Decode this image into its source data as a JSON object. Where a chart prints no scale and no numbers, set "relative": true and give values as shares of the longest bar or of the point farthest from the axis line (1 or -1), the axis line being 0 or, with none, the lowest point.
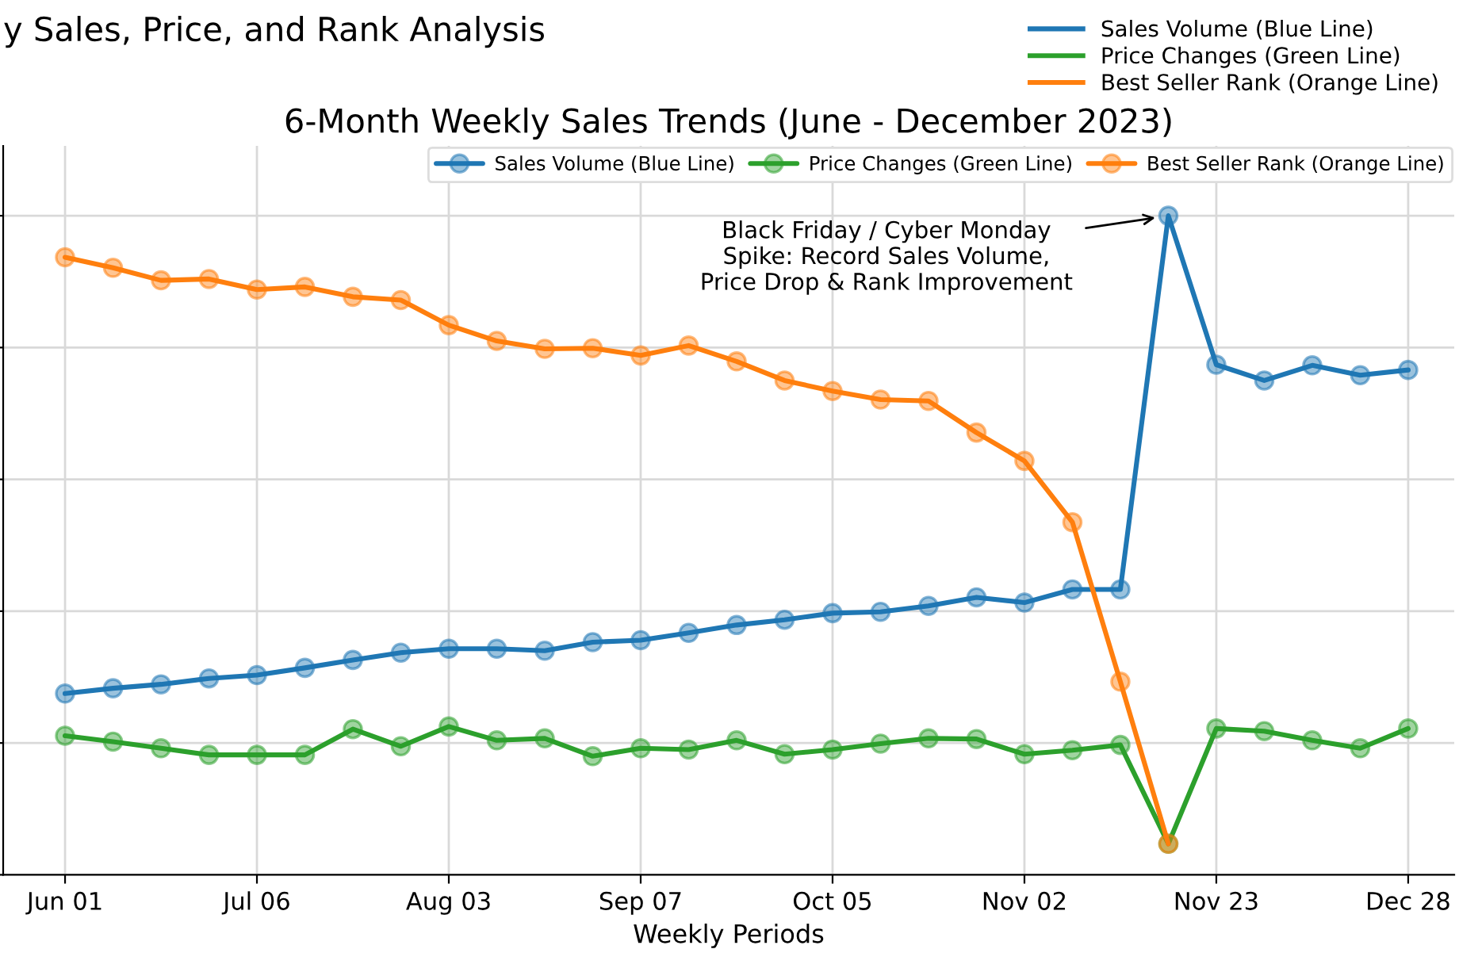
{
  "chart_data": {
    "type": "line",
    "title": "y Sales, Price, and Rank Analysis",
    "subtitle": "6-Month Weekly Sales Trends (June - December 2023)",
    "xlabel": "Weekly Periods",
    "categories": [
      "Jun 01",
      null,
      null,
      null,
      "Jul 06",
      null,
      null,
      null,
      "Aug 03",
      null,
      null,
      null,
      "Sep 07",
      null,
      null,
      null,
      "Oct 05",
      null,
      null,
      null,
      "Nov 02",
      null,
      null,
      null,
      "Nov 23",
      null,
      null,
      null,
      "Dec 28"
    ],
    "relative": true,
    "series": [
      {
        "name": "Sales Volume (Blue Line)",
        "color": "#1f77b4",
        "values": [
          0.275,
          0.283,
          0.289,
          0.298,
          0.303,
          0.314,
          0.326,
          0.337,
          0.343,
          0.343,
          0.34,
          0.353,
          0.356,
          0.367,
          0.379,
          0.387,
          0.397,
          0.399,
          0.408,
          0.421,
          0.413,
          0.433,
          0.433,
          1.0,
          0.774,
          0.75,
          0.773,
          0.758,
          0.766
        ]
      },
      {
        "name": "Price Changes (Green Line)",
        "color": "#2ca02c",
        "values": [
          0.211,
          0.202,
          0.192,
          0.182,
          0.182,
          0.182,
          0.221,
          0.195,
          0.225,
          0.204,
          0.207,
          0.18,
          0.192,
          0.19,
          0.204,
          0.183,
          0.19,
          0.199,
          0.207,
          0.206,
          0.183,
          0.189,
          0.197,
          0.047,
          0.222,
          0.218,
          0.204,
          0.192,
          0.222
        ]
      },
      {
        "name": "Best Seller Rank (Orange Line)",
        "color": "#ff7f0e",
        "values": [
          0.937,
          0.921,
          0.902,
          0.904,
          0.888,
          0.892,
          0.877,
          0.872,
          0.834,
          0.81,
          0.798,
          0.799,
          0.788,
          0.803,
          0.779,
          0.75,
          0.734,
          0.721,
          0.719,
          0.671,
          0.628,
          0.535,
          0.293,
          0.047,
          null,
          null,
          null,
          null,
          null
        ]
      }
    ],
    "annotations": [
      "Black Friday / Cyber Monday\nSpike: Record Sales Volume,\nPrice Drop & Rank Improvement"
    ],
    "marker": "circle",
    "line_style": "solid",
    "grid": true,
    "legend": "top right"
  }
}
